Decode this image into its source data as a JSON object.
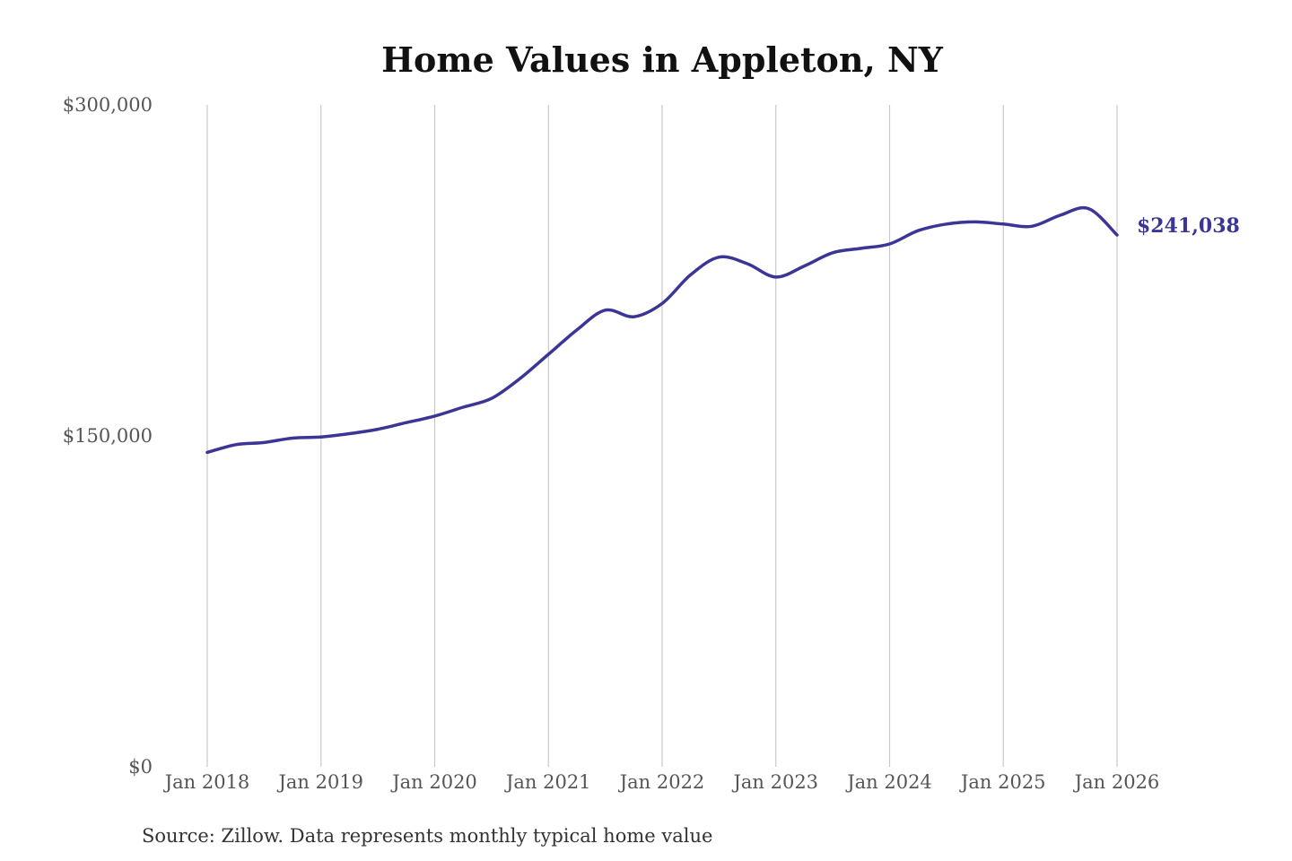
{
  "chart_data": {
    "type": "line",
    "title": "Home Values in Appleton, NY",
    "xlabel": "",
    "ylabel": "",
    "ylim": [
      0,
      300000
    ],
    "y_ticks": [
      {
        "value": 0,
        "label": "$0"
      },
      {
        "value": 150000,
        "label": "$150,000"
      },
      {
        "value": 300000,
        "label": "$300,000"
      }
    ],
    "x_ticks": [
      {
        "date": "2018-01",
        "label": "Jan 2018"
      },
      {
        "date": "2019-01",
        "label": "Jan 2019"
      },
      {
        "date": "2020-01",
        "label": "Jan 2020"
      },
      {
        "date": "2021-01",
        "label": "Jan 2021"
      },
      {
        "date": "2022-01",
        "label": "Jan 2022"
      },
      {
        "date": "2023-01",
        "label": "Jan 2023"
      },
      {
        "date": "2024-01",
        "label": "Jan 2024"
      },
      {
        "date": "2025-01",
        "label": "Jan 2025"
      },
      {
        "date": "2026-01",
        "label": "Jan 2026"
      }
    ],
    "grid": "vertical",
    "series": [
      {
        "color": "#3b3596",
        "x": [
          "2018-01",
          "2018-04",
          "2018-07",
          "2018-10",
          "2019-01",
          "2019-04",
          "2019-07",
          "2019-10",
          "2020-01",
          "2020-04",
          "2020-07",
          "2020-10",
          "2021-01",
          "2021-04",
          "2021-07",
          "2021-10",
          "2022-01",
          "2022-04",
          "2022-07",
          "2022-10",
          "2023-01",
          "2023-04",
          "2023-07",
          "2023-10",
          "2024-01",
          "2024-04",
          "2024-07",
          "2024-10",
          "2025-01",
          "2025-04",
          "2025-07",
          "2025-10",
          "2026-01"
        ],
        "values": [
          142500,
          146000,
          147000,
          149000,
          149500,
          151000,
          153000,
          156000,
          159000,
          163000,
          167000,
          176000,
          187000,
          198000,
          207000,
          204000,
          210000,
          223000,
          231000,
          228000,
          222000,
          227000,
          233000,
          235000,
          237000,
          243000,
          246000,
          247000,
          246000,
          245000,
          250000,
          253000,
          241038
        ],
        "end_label": "$241,038"
      }
    ],
    "source": "Source: Zillow. Data represents monthly typical home value"
  }
}
